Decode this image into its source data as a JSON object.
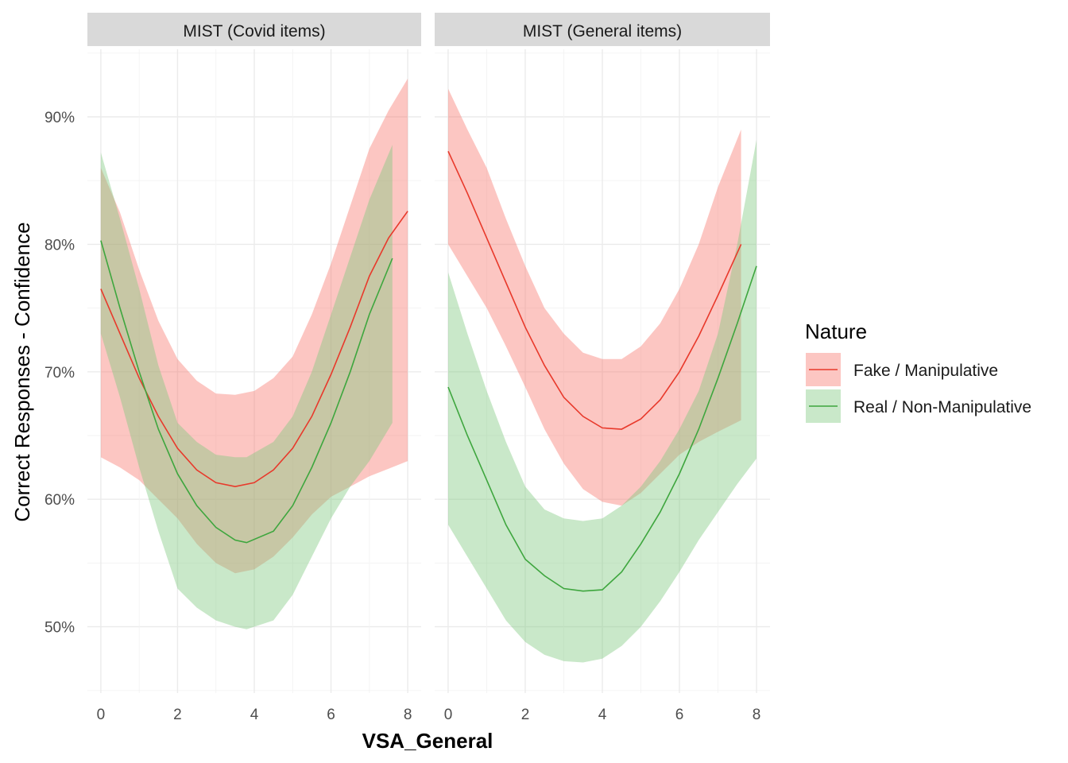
{
  "chart_data": {
    "type": "line",
    "xlabel": "VSA_General",
    "ylabel": "Correct Responses - Confidence",
    "y_unit": "percent",
    "xlim": [
      -0.35,
      8.35
    ],
    "ylim": [
      44.8,
      95.3
    ],
    "x_ticks": [
      0,
      2,
      4,
      6,
      8
    ],
    "y_ticks": [
      50,
      60,
      70,
      80,
      90
    ],
    "y_tick_labels": [
      "50%",
      "60%",
      "70%",
      "80%",
      "90%"
    ],
    "grid": true,
    "legend": {
      "title": "Nature",
      "position": "right",
      "entries": [
        {
          "label": "Fake / Manipulative",
          "color": "#e8392b",
          "fill": "#f8766d"
        },
        {
          "label": "Real / Non-Manipulative",
          "color": "#3ea63e",
          "fill": "#7fc87f"
        }
      ]
    },
    "panels": [
      {
        "title": "MIST (Covid items)",
        "series": [
          {
            "name": "Fake / Manipulative",
            "color": "#e8392b",
            "band_color": "#f8766d",
            "x": [
              0,
              0.5,
              1,
              1.5,
              2,
              2.5,
              3,
              3.5,
              4,
              4.5,
              5,
              5.5,
              6,
              6.5,
              7,
              7.5,
              8
            ],
            "y": [
              76.5,
              73.0,
              69.5,
              66.5,
              64.0,
              62.3,
              61.3,
              61.0,
              61.3,
              62.3,
              64.0,
              66.5,
              69.8,
              73.5,
              77.5,
              80.5,
              82.6
            ],
            "lower": [
              63.3,
              62.5,
              61.5,
              60.0,
              58.5,
              56.5,
              55.0,
              54.2,
              54.5,
              55.5,
              57.0,
              58.8,
              60.2,
              61.0,
              61.8,
              62.4,
              63.0
            ],
            "upper": [
              86.0,
              82.5,
              78.0,
              74.0,
              71.0,
              69.3,
              68.3,
              68.2,
              68.5,
              69.5,
              71.2,
              74.5,
              78.5,
              83.0,
              87.5,
              90.5,
              93.0
            ]
          },
          {
            "name": "Real / Non-Manipulative",
            "color": "#3ea63e",
            "band_color": "#7fc87f",
            "x": [
              0,
              0.5,
              1,
              1.5,
              2,
              2.5,
              3,
              3.5,
              3.8,
              4.5,
              5,
              5.5,
              6,
              6.5,
              7,
              7.6
            ],
            "y": [
              80.3,
              75.0,
              70.0,
              65.5,
              62.0,
              59.5,
              57.8,
              56.8,
              56.6,
              57.5,
              59.5,
              62.5,
              66.0,
              70.0,
              74.5,
              78.9
            ],
            "lower": [
              73.0,
              68.0,
              62.5,
              57.5,
              53.0,
              51.5,
              50.5,
              50.0,
              49.8,
              50.5,
              52.5,
              55.5,
              58.5,
              61.0,
              63.0,
              66.0
            ],
            "upper": [
              87.2,
              82.0,
              76.5,
              70.5,
              66.0,
              64.5,
              63.5,
              63.3,
              63.3,
              64.5,
              66.5,
              70.0,
              74.5,
              79.0,
              83.5,
              87.8
            ]
          }
        ]
      },
      {
        "title": "MIST (General items)",
        "series": [
          {
            "name": "Fake / Manipulative",
            "color": "#e8392b",
            "band_color": "#f8766d",
            "x": [
              0,
              0.5,
              1,
              1.5,
              2,
              2.5,
              3,
              3.5,
              4,
              4.5,
              5,
              5.5,
              6,
              6.5,
              7,
              7.6
            ],
            "y": [
              87.3,
              84.0,
              80.5,
              77.0,
              73.5,
              70.5,
              68.0,
              66.5,
              65.6,
              65.5,
              66.3,
              67.8,
              70.0,
              72.8,
              76.0,
              80.0
            ],
            "lower": [
              80.0,
              77.5,
              75.0,
              72.0,
              68.8,
              65.5,
              62.8,
              60.8,
              59.8,
              59.5,
              60.5,
              62.0,
              63.5,
              64.5,
              65.3,
              66.2
            ],
            "upper": [
              92.2,
              89.0,
              86.0,
              82.0,
              78.3,
              75.0,
              73.0,
              71.5,
              71.0,
              71.0,
              72.0,
              73.8,
              76.5,
              80.0,
              84.5,
              89.0
            ]
          },
          {
            "name": "Real / Non-Manipulative",
            "color": "#3ea63e",
            "band_color": "#7fc87f",
            "x": [
              0,
              0.5,
              1,
              1.5,
              2,
              2.5,
              3,
              3.5,
              4,
              4.5,
              5,
              5.5,
              6,
              6.5,
              7,
              7.5,
              8
            ],
            "y": [
              68.8,
              65.0,
              61.5,
              58.0,
              55.3,
              54.0,
              53.0,
              52.8,
              52.9,
              54.3,
              56.5,
              59.0,
              62.0,
              65.5,
              69.5,
              73.8,
              78.3
            ],
            "lower": [
              58.0,
              55.5,
              53.0,
              50.5,
              48.8,
              47.8,
              47.3,
              47.2,
              47.5,
              48.5,
              50.0,
              52.0,
              54.3,
              56.8,
              59.0,
              61.2,
              63.2
            ],
            "upper": [
              77.8,
              73.0,
              68.5,
              64.5,
              61.0,
              59.2,
              58.5,
              58.3,
              58.5,
              59.5,
              61.0,
              63.0,
              65.5,
              68.5,
              73.0,
              80.0,
              88.2
            ]
          }
        ]
      }
    ]
  }
}
